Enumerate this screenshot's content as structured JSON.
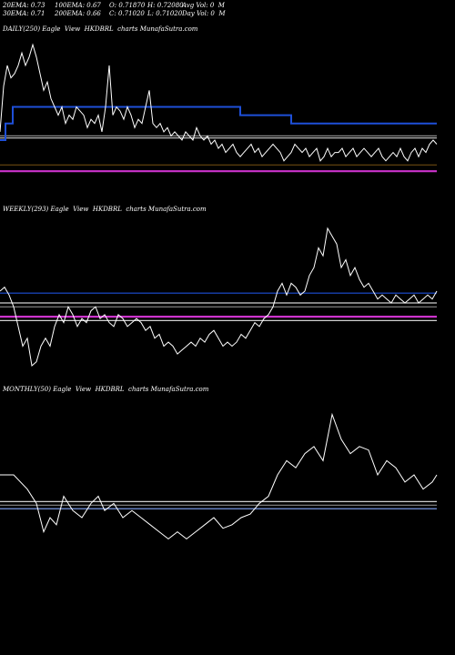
{
  "header": {
    "row1": [
      "20EMA: 0.73",
      "100EMA: 0.67",
      "O: 0.71870",
      "H: 0.72080",
      "Avg Vol: 0  M"
    ],
    "row2": [
      "30EMA: 0.71",
      "200EMA: 0.66",
      "C: 0.71020",
      "L: 0.71020",
      "Day Vol: 0  M"
    ]
  },
  "colors": {
    "background": "#000000",
    "price": "#ffffff",
    "ema_blue": "#1e4fd8",
    "ref_white": "#cfcfcf",
    "ref_gray": "#8a8a8a",
    "ref_orange": "#6b4a10",
    "magenta": "#cc33cc",
    "light_blue": "#88aaff"
  },
  "chart_data": [
    {
      "type": "line",
      "title": "DAILY(250) Eagle  View  HKDBRL  charts MunafaSutra.com",
      "x": [
        0,
        4,
        8,
        12,
        16,
        20,
        24,
        28,
        32,
        36,
        40,
        44,
        48,
        52,
        56,
        60,
        64,
        68,
        72,
        76,
        80,
        84,
        88,
        92,
        96,
        100,
        104,
        108,
        112,
        116,
        120,
        124,
        128,
        132,
        136,
        140,
        144,
        148,
        152,
        156,
        160,
        164,
        168,
        172,
        176,
        180,
        184,
        188,
        192,
        196,
        200,
        204,
        208,
        212,
        216,
        220,
        224,
        228,
        232,
        236,
        240,
        244,
        248,
        252,
        256,
        260,
        264,
        268,
        272,
        276,
        280,
        284,
        288,
        292,
        296,
        300,
        304,
        308,
        312,
        316,
        320,
        324,
        328,
        332,
        336,
        340,
        344,
        348,
        352,
        356,
        360,
        364,
        368,
        372,
        376,
        380,
        384,
        388,
        392,
        396,
        400,
        404,
        408,
        412,
        416,
        420,
        424,
        428,
        432,
        436,
        440,
        444,
        448,
        452,
        456,
        460,
        464,
        468,
        472,
        476,
        480
      ],
      "y": [
        0.74,
        0.85,
        0.9,
        0.87,
        0.88,
        0.9,
        0.93,
        0.9,
        0.92,
        0.95,
        0.92,
        0.88,
        0.84,
        0.86,
        0.82,
        0.8,
        0.78,
        0.8,
        0.76,
        0.78,
        0.77,
        0.8,
        0.79,
        0.78,
        0.75,
        0.77,
        0.76,
        0.78,
        0.74,
        0.8,
        0.9,
        0.78,
        0.8,
        0.79,
        0.77,
        0.8,
        0.78,
        0.75,
        0.77,
        0.76,
        0.8,
        0.84,
        0.76,
        0.75,
        0.76,
        0.74,
        0.75,
        0.73,
        0.74,
        0.73,
        0.72,
        0.74,
        0.73,
        0.72,
        0.75,
        0.73,
        0.72,
        0.73,
        0.71,
        0.72,
        0.7,
        0.71,
        0.69,
        0.7,
        0.71,
        0.69,
        0.68,
        0.69,
        0.7,
        0.71,
        0.69,
        0.7,
        0.68,
        0.69,
        0.7,
        0.71,
        0.7,
        0.69,
        0.67,
        0.68,
        0.69,
        0.71,
        0.7,
        0.69,
        0.7,
        0.68,
        0.69,
        0.7,
        0.67,
        0.68,
        0.7,
        0.68,
        0.69,
        0.69,
        0.7,
        0.68,
        0.69,
        0.7,
        0.68,
        0.69,
        0.7,
        0.69,
        0.68,
        0.69,
        0.7,
        0.68,
        0.67,
        0.68,
        0.69,
        0.68,
        0.7,
        0.68,
        0.67,
        0.69,
        0.7,
        0.68,
        0.7,
        0.69,
        0.71,
        0.72,
        0.71
      ],
      "ema_steps": [
        [
          0,
          0.72
        ],
        [
          6,
          0.76
        ],
        [
          14,
          0.8
        ],
        [
          64,
          0.8
        ],
        [
          264,
          0.78
        ],
        [
          320,
          0.76
        ],
        [
          480,
          0.76
        ]
      ],
      "hlines": [
        {
          "y": 0.725,
          "color": "ref_white"
        },
        {
          "y": 0.73,
          "color": "ref_gray"
        },
        {
          "y": 0.66,
          "color": "ref_orange"
        },
        {
          "y": 0.645,
          "color": "magenta"
        }
      ],
      "ylim": [
        0.63,
        0.97
      ]
    },
    {
      "type": "line",
      "title": "WEEKLY(293) Eagle  View  HKDBRL  charts MunafaSutra.com",
      "x": [
        0,
        5,
        10,
        15,
        20,
        25,
        30,
        35,
        40,
        45,
        50,
        55,
        60,
        65,
        70,
        75,
        80,
        85,
        90,
        95,
        100,
        105,
        110,
        115,
        120,
        125,
        130,
        135,
        140,
        145,
        150,
        155,
        160,
        165,
        170,
        175,
        180,
        185,
        190,
        195,
        200,
        205,
        210,
        215,
        220,
        225,
        230,
        235,
        240,
        245,
        250,
        255,
        260,
        265,
        270,
        275,
        280,
        285,
        290,
        295,
        300,
        305,
        310,
        315,
        320,
        325,
        330,
        335,
        340,
        345,
        350,
        355,
        360,
        365,
        370,
        375,
        380,
        385,
        390,
        395,
        400,
        405,
        410,
        415,
        420,
        425,
        430,
        435,
        440,
        445,
        450,
        455,
        460,
        465,
        470,
        475,
        480
      ],
      "y": [
        0.74,
        0.75,
        0.73,
        0.7,
        0.65,
        0.6,
        0.62,
        0.55,
        0.56,
        0.6,
        0.62,
        0.6,
        0.65,
        0.68,
        0.66,
        0.7,
        0.68,
        0.65,
        0.67,
        0.66,
        0.69,
        0.7,
        0.67,
        0.68,
        0.66,
        0.65,
        0.68,
        0.67,
        0.65,
        0.66,
        0.67,
        0.66,
        0.64,
        0.65,
        0.62,
        0.63,
        0.6,
        0.61,
        0.6,
        0.58,
        0.59,
        0.6,
        0.61,
        0.6,
        0.62,
        0.61,
        0.63,
        0.64,
        0.62,
        0.6,
        0.61,
        0.6,
        0.61,
        0.63,
        0.62,
        0.64,
        0.66,
        0.65,
        0.67,
        0.68,
        0.7,
        0.74,
        0.76,
        0.73,
        0.76,
        0.75,
        0.73,
        0.74,
        0.78,
        0.8,
        0.85,
        0.83,
        0.9,
        0.88,
        0.86,
        0.8,
        0.82,
        0.78,
        0.8,
        0.77,
        0.75,
        0.76,
        0.74,
        0.72,
        0.73,
        0.72,
        0.71,
        0.73,
        0.72,
        0.71,
        0.72,
        0.73,
        0.71,
        0.72,
        0.73,
        0.72,
        0.74
      ],
      "hlines": [
        {
          "y": 0.735,
          "color": "ema_blue"
        },
        {
          "y": 0.71,
          "color": "ref_white"
        },
        {
          "y": 0.7,
          "color": "ref_gray"
        },
        {
          "y": 0.675,
          "color": "magenta"
        },
        {
          "y": 0.665,
          "color": "ref_white"
        }
      ],
      "ylim": [
        0.52,
        0.93
      ]
    },
    {
      "type": "line",
      "title": "MONTHLY(50) Eagle  View  HKDBRL  charts MunafaSutra.com",
      "x": [
        0,
        15,
        30,
        40,
        48,
        55,
        62,
        70,
        80,
        90,
        100,
        108,
        115,
        125,
        135,
        145,
        155,
        165,
        175,
        185,
        195,
        205,
        215,
        225,
        235,
        245,
        255,
        265,
        275,
        285,
        295,
        305,
        315,
        325,
        335,
        345,
        355,
        365,
        375,
        385,
        395,
        405,
        415,
        425,
        435,
        445,
        455,
        465,
        475,
        480
      ],
      "y": [
        0.78,
        0.78,
        0.74,
        0.7,
        0.62,
        0.66,
        0.64,
        0.72,
        0.68,
        0.66,
        0.7,
        0.72,
        0.68,
        0.7,
        0.66,
        0.68,
        0.66,
        0.64,
        0.62,
        0.6,
        0.62,
        0.6,
        0.62,
        0.64,
        0.66,
        0.63,
        0.64,
        0.66,
        0.67,
        0.7,
        0.72,
        0.78,
        0.82,
        0.8,
        0.84,
        0.86,
        0.82,
        0.95,
        0.88,
        0.84,
        0.86,
        0.85,
        0.78,
        0.82,
        0.8,
        0.76,
        0.78,
        0.74,
        0.76,
        0.78
      ],
      "hlines": [
        {
          "y": 0.705,
          "color": "ref_white"
        },
        {
          "y": 0.695,
          "color": "ref_gray"
        },
        {
          "y": 0.685,
          "color": "light_blue"
        }
      ],
      "ylim": [
        0.55,
        1.0
      ]
    }
  ]
}
